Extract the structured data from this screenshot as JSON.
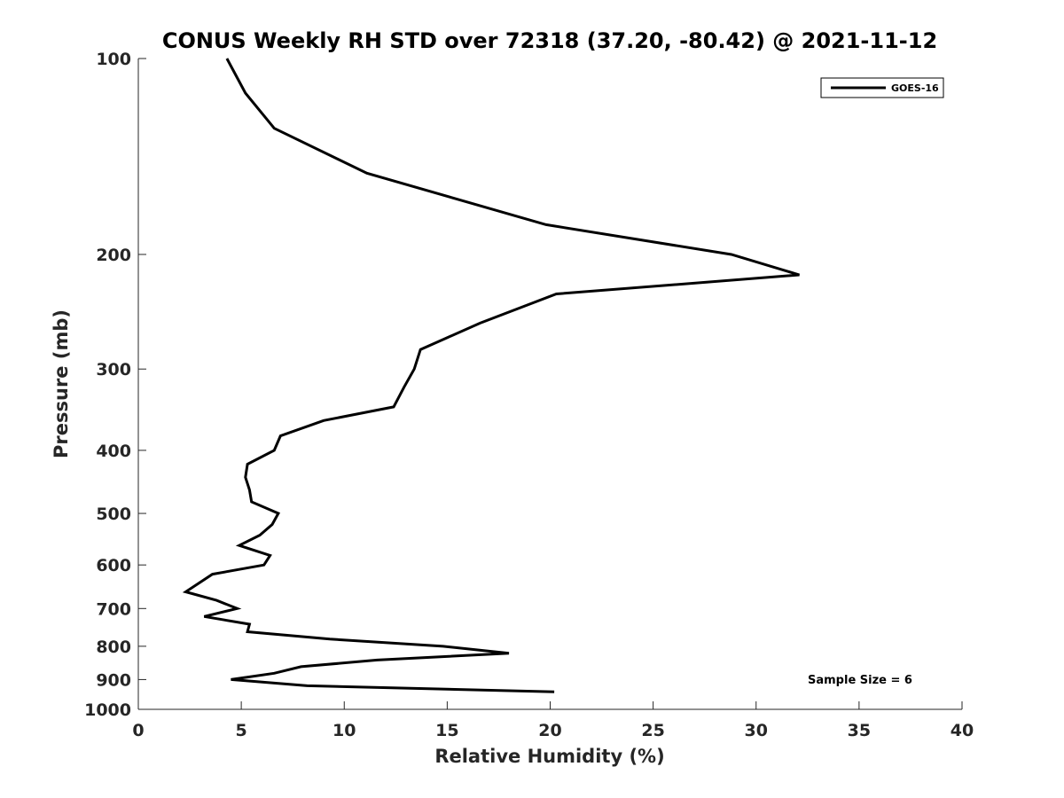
{
  "chart_data": {
    "type": "line",
    "title": "CONUS Weekly RH STD over 72318 (37.20, -80.42) @ 2021-11-12",
    "xlabel": "Relative Humidity (%)",
    "ylabel": "Pressure (mb)",
    "xlim": [
      0,
      40
    ],
    "ylim": [
      100,
      1000
    ],
    "y_scale": "log",
    "y_reversed": true,
    "x_ticks": [
      "0",
      "5",
      "10",
      "15",
      "20",
      "25",
      "30",
      "35",
      "40"
    ],
    "y_ticks": [
      "100",
      "200",
      "300",
      "400",
      "500",
      "600",
      "700",
      "800",
      "900",
      "1000"
    ],
    "legend_position": "top-right",
    "annotation": "Sample Size = 6",
    "series": [
      {
        "name": "GOES-16",
        "color": "#000000",
        "x": [
          4.3,
          5.2,
          6.6,
          11.1,
          19.8,
          28.8,
          32.1,
          20.3,
          16.6,
          13.7,
          13.4,
          12.9,
          12.4,
          9.0,
          6.9,
          6.6,
          5.3,
          5.2,
          5.4,
          5.5,
          6.8,
          6.5,
          5.9,
          4.9,
          6.4,
          6.1,
          3.6,
          2.3,
          3.8,
          4.8,
          3.2,
          5.4,
          5.3,
          9.3,
          14.8,
          18.0,
          11.6,
          7.9,
          6.6,
          4.5,
          8.2,
          20.2
        ],
        "y": [
          100,
          113,
          128,
          150,
          180,
          200,
          215,
          230,
          255,
          280,
          300,
          320,
          343,
          360,
          380,
          400,
          420,
          440,
          460,
          480,
          500,
          520,
          540,
          560,
          580,
          600,
          620,
          660,
          680,
          700,
          720,
          740,
          760,
          780,
          800,
          820,
          840,
          860,
          880,
          900,
          920,
          940
        ]
      }
    ]
  }
}
